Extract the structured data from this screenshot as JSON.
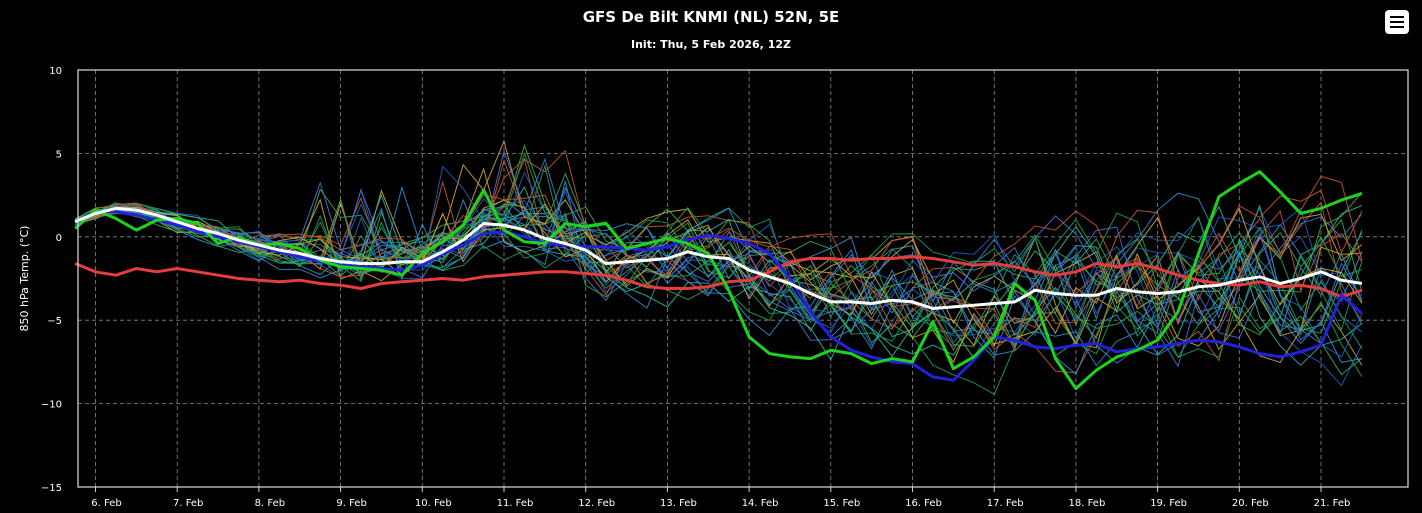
{
  "chart_data": {
    "type": "line",
    "title": "GFS De Bilt KNMI (NL) 52N, 5E",
    "subtitle": "Init: Thu, 5 Feb 2026, 12Z",
    "ylabel": "850 hPa Temp. (°C)",
    "ylim": [
      -15,
      10
    ],
    "y_ticks": [
      "10",
      "5",
      "0",
      "−5",
      "−10",
      "−15"
    ],
    "y_tick_values": [
      10,
      5,
      0,
      -5,
      -10,
      -15
    ],
    "xlim_hours": [
      0,
      384
    ],
    "x_ticks": [
      "6. Feb",
      "7. Feb",
      "8. Feb",
      "9. Feb",
      "10. Feb",
      "11. Feb",
      "12. Feb",
      "13. Feb",
      "14. Feb",
      "15. Feb",
      "16. Feb",
      "17. Feb",
      "18. Feb",
      "19. Feb",
      "20. Feb",
      "21. Feb"
    ],
    "grid": true,
    "x_step_hours": 6,
    "series": [
      {
        "role": "ensemble-mean",
        "color": "#ffffff",
        "width": 3,
        "values": [
          0.9,
          1.4,
          1.7,
          1.6,
          1.3,
          0.9,
          0.5,
          0.2,
          -0.2,
          -0.5,
          -0.8,
          -1.0,
          -1.3,
          -1.5,
          -1.6,
          -1.6,
          -1.5,
          -1.5,
          -0.9,
          -0.2,
          0.8,
          0.7,
          0.4,
          -0.1,
          -0.4,
          -0.8,
          -1.6,
          -1.5,
          -1.4,
          -1.3,
          -0.9,
          -1.2,
          -1.3,
          -2.0,
          -2.4,
          -2.8,
          -3.4,
          -3.9,
          -3.9,
          -4.0,
          -3.8,
          -3.9,
          -4.3,
          -4.2,
          -4.1,
          -4.0,
          -3.9,
          -3.2,
          -3.4,
          -3.5,
          -3.5,
          -3.1,
          -3.3,
          -3.4,
          -3.3,
          -3.0,
          -2.9,
          -2.6,
          -2.4,
          -2.8,
          -2.5,
          -2.1,
          -2.6,
          -2.8
        ]
      },
      {
        "role": "control",
        "color": "#2222dd",
        "width": 3,
        "values": [
          0.8,
          1.5,
          1.5,
          1.3,
          1.0,
          0.7,
          0.3,
          0.0,
          -0.3,
          -0.6,
          -0.9,
          -1.2,
          -1.5,
          -1.7,
          -1.8,
          -1.9,
          -2.0,
          -1.7,
          -1.0,
          -0.5,
          0.2,
          0.3,
          0.0,
          -0.4,
          -0.5,
          -0.6,
          -0.6,
          -0.7,
          -0.8,
          -0.6,
          -0.2,
          0.1,
          -0.1,
          -0.4,
          -1.0,
          -2.5,
          -4.5,
          -6.0,
          -6.8,
          -7.2,
          -7.5,
          -7.6,
          -8.4,
          -8.6,
          -7.4,
          -6.0,
          -6.2,
          -6.6,
          -6.7,
          -6.5,
          -6.4,
          -6.9,
          -6.7,
          -6.6,
          -6.4,
          -6.2,
          -6.3,
          -6.6,
          -7.0,
          -7.2,
          -6.9,
          -6.5,
          -3.5,
          -4.6
        ]
      },
      {
        "role": "operational",
        "color": "#1ed31e",
        "width": 3,
        "values": [
          0.5,
          1.6,
          1.1,
          0.4,
          1.0,
          1.1,
          0.8,
          -0.4,
          0.0,
          -0.5,
          -0.4,
          -0.7,
          -1.4,
          -1.8,
          -1.9,
          -2.0,
          -2.3,
          -1.0,
          -0.3,
          0.7,
          2.8,
          0.4,
          -0.3,
          -0.4,
          0.8,
          0.6,
          0.8,
          -0.7,
          -0.4,
          -0.1,
          -0.4,
          -1.0,
          -3.2,
          -6.0,
          -7.0,
          -7.2,
          -7.3,
          -6.8,
          -7.0,
          -7.6,
          -7.3,
          -7.5,
          -5.1,
          -7.9,
          -7.2,
          -6.0,
          -2.8,
          -3.8,
          -7.3,
          -9.1,
          -8.0,
          -7.2,
          -6.8,
          -6.2,
          -4.5,
          -1.0,
          2.4,
          3.2,
          3.9,
          2.7,
          1.4,
          1.7,
          2.2,
          2.6
        ]
      },
      {
        "role": "climate",
        "color": "#e63c3c",
        "width": 3,
        "values": [
          -1.6,
          -2.1,
          -2.3,
          -1.9,
          -2.1,
          -1.9,
          -2.1,
          -2.3,
          -2.5,
          -2.6,
          -2.7,
          -2.6,
          -2.8,
          -2.9,
          -3.1,
          -2.8,
          -2.7,
          -2.6,
          -2.5,
          -2.6,
          -2.4,
          -2.3,
          -2.2,
          -2.1,
          -2.1,
          -2.2,
          -2.3,
          -2.6,
          -3.0,
          -3.1,
          -3.1,
          -3.0,
          -2.7,
          -2.6,
          -2.1,
          -1.5,
          -1.3,
          -1.3,
          -1.4,
          -1.3,
          -1.3,
          -1.2,
          -1.3,
          -1.5,
          -1.7,
          -1.6,
          -1.8,
          -2.1,
          -2.3,
          -2.1,
          -1.6,
          -1.8,
          -1.6,
          -1.9,
          -2.3,
          -2.6,
          -2.8,
          -2.9,
          -2.7,
          -3.0,
          -2.9,
          -3.1,
          -3.6,
          -3.2
        ]
      }
    ],
    "ensemble_members": {
      "count": 30,
      "colors": [
        "#1f5fbf",
        "#2a8fd0",
        "#1a9e5a",
        "#3aa84a",
        "#c8a83a",
        "#c8552a",
        "#2bb5a0",
        "#4a6fd8"
      ],
      "width": 1
    }
  },
  "toolbar": {
    "menu_icon": "hamburger-menu-icon"
  }
}
